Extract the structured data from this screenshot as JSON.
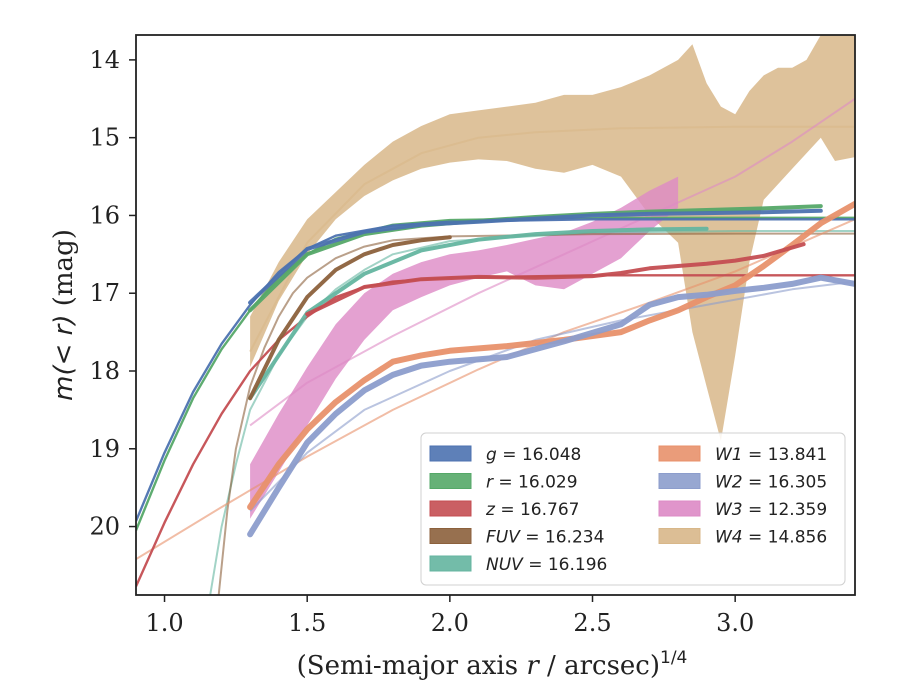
{
  "chart_data": {
    "type": "line",
    "xlabel": "(Semi-major axis r / arcsec)^1/4",
    "xlabel_parts": {
      "pre": "(Semi-major axis ",
      "var": "r",
      "post": " / arcsec)",
      "sup": "1/4"
    },
    "ylabel": "m(<r) (mag)",
    "ylabel_parts": {
      "m": "m",
      "rest": "(< r)",
      "unit": " (mag)"
    },
    "xlim": [
      0.9,
      3.42
    ],
    "ylim": [
      20.88,
      13.68
    ],
    "y_inverted": true,
    "grid": false,
    "legend_position": "lower-right",
    "xticks": [
      1.0,
      1.5,
      2.0,
      2.5,
      3.0
    ],
    "xtick_labels": [
      "1.0",
      "1.5",
      "2.0",
      "2.5",
      "3.0"
    ],
    "yticks": [
      14,
      15,
      16,
      17,
      18,
      19,
      20
    ],
    "ytick_labels": [
      "14",
      "15",
      "16",
      "17",
      "18",
      "19",
      "20"
    ],
    "series": [
      {
        "name": "g",
        "label_value": "16.048",
        "color": "#4c72b0",
        "model_x": [
          0.9,
          1.0,
          1.1,
          1.2,
          1.3,
          1.4,
          1.5,
          1.6,
          1.8,
          2.0,
          2.5,
          3.0,
          3.42
        ],
        "model_y": [
          19.93,
          19.05,
          18.27,
          17.65,
          17.15,
          16.73,
          16.43,
          16.26,
          16.13,
          16.08,
          16.05,
          16.05,
          16.05
        ],
        "data_x": [
          1.3,
          1.5,
          1.7,
          1.9,
          2.1,
          2.3,
          2.5,
          2.7,
          2.9,
          3.1,
          3.3
        ],
        "data_y": [
          17.12,
          16.43,
          16.21,
          16.12,
          16.08,
          16.04,
          16.0,
          15.98,
          15.97,
          15.96,
          15.94
        ]
      },
      {
        "name": "r",
        "label_value": "16.029",
        "color": "#55a868",
        "model_x": [
          0.9,
          1.0,
          1.1,
          1.2,
          1.3,
          1.4,
          1.5,
          1.6,
          1.8,
          2.0,
          2.5,
          3.0,
          3.42
        ],
        "model_y": [
          20.05,
          19.15,
          18.35,
          17.72,
          17.22,
          16.8,
          16.5,
          16.3,
          16.12,
          16.06,
          16.03,
          16.03,
          16.03
        ],
        "data_x": [
          1.3,
          1.5,
          1.7,
          1.9,
          2.1,
          2.3,
          2.5,
          2.7,
          2.9,
          3.1,
          3.3
        ],
        "data_y": [
          17.22,
          16.5,
          16.24,
          16.13,
          16.07,
          16.02,
          15.98,
          15.95,
          15.93,
          15.91,
          15.88
        ]
      },
      {
        "name": "z",
        "label_value": "16.767",
        "color": "#c44e52",
        "model_x": [
          0.9,
          1.0,
          1.1,
          1.2,
          1.3,
          1.4,
          1.5,
          1.6,
          1.7,
          1.8,
          2.0,
          2.5,
          3.0,
          3.42
        ],
        "model_y": [
          20.77,
          19.95,
          19.2,
          18.55,
          18.0,
          17.6,
          17.3,
          17.05,
          16.92,
          16.85,
          16.8,
          16.77,
          16.77,
          16.77
        ],
        "data_x": [
          1.5,
          1.7,
          1.9,
          2.1,
          2.3,
          2.5,
          2.6,
          2.7,
          2.8,
          2.9,
          3.0,
          3.1,
          3.24
        ],
        "data_y": [
          17.27,
          16.92,
          16.82,
          16.79,
          16.8,
          16.78,
          16.74,
          16.68,
          16.65,
          16.62,
          16.58,
          16.52,
          16.37
        ]
      },
      {
        "name": "FUV",
        "label_value": "16.234",
        "color": "#8c613c",
        "model_x": [
          1.19,
          1.22,
          1.25,
          1.3,
          1.35,
          1.4,
          1.45,
          1.5,
          1.6,
          1.7,
          1.8,
          2.0,
          2.5,
          3.0,
          3.42
        ],
        "model_y": [
          20.88,
          19.8,
          19.0,
          18.2,
          17.7,
          17.3,
          17.0,
          16.8,
          16.55,
          16.4,
          16.32,
          16.27,
          16.24,
          16.234,
          16.234
        ],
        "data_x": [
          1.3,
          1.4,
          1.5,
          1.6,
          1.7,
          1.8,
          1.9,
          2.0
        ],
        "data_y": [
          18.35,
          17.6,
          17.05,
          16.7,
          16.5,
          16.38,
          16.32,
          16.28
        ]
      },
      {
        "name": "NUV",
        "label_value": "16.196",
        "color": "#64b5a0",
        "model_x": [
          1.16,
          1.2,
          1.25,
          1.3,
          1.4,
          1.5,
          1.6,
          1.7,
          1.8,
          2.0,
          2.5,
          3.0,
          3.42
        ],
        "model_y": [
          20.88,
          20.0,
          19.2,
          18.5,
          17.8,
          17.3,
          16.95,
          16.7,
          16.5,
          16.33,
          16.22,
          16.2,
          16.2
        ],
        "data_x": [
          1.3,
          1.5,
          1.7,
          1.9,
          2.1,
          2.3,
          2.5,
          2.7,
          2.9
        ],
        "data_y": [
          18.35,
          17.25,
          16.75,
          16.45,
          16.31,
          16.24,
          16.2,
          16.18,
          16.17
        ]
      },
      {
        "name": "W1",
        "label_value": "13.841",
        "color": "#e8916b",
        "model_x": [
          0.9,
          1.2,
          1.5,
          1.8,
          2.1,
          2.4,
          2.7,
          3.0,
          3.42
        ],
        "model_y": [
          20.42,
          19.75,
          19.1,
          18.5,
          17.98,
          17.5,
          17.12,
          16.72,
          16.05
        ],
        "data_x": [
          1.3,
          1.4,
          1.5,
          1.6,
          1.7,
          1.8,
          1.9,
          2.0,
          2.2,
          2.4,
          2.6,
          2.7,
          2.8,
          2.9,
          3.0,
          3.1,
          3.2,
          3.3,
          3.42
        ],
        "data_y": [
          19.75,
          19.2,
          18.75,
          18.4,
          18.12,
          17.88,
          17.8,
          17.74,
          17.68,
          17.6,
          17.5,
          17.35,
          17.22,
          17.05,
          16.9,
          16.65,
          16.38,
          16.1,
          15.85
        ]
      },
      {
        "name": "W2",
        "label_value": "16.305",
        "color": "#8c9dcc",
        "model_x": [
          1.3,
          1.5,
          1.7,
          2.0,
          2.3,
          2.6,
          2.9,
          3.2,
          3.42
        ],
        "model_y": [
          19.8,
          19.05,
          18.5,
          18.0,
          17.6,
          17.35,
          17.15,
          16.95,
          16.85
        ],
        "data_x": [
          1.3,
          1.4,
          1.5,
          1.6,
          1.7,
          1.8,
          1.9,
          2.0,
          2.2,
          2.4,
          2.6,
          2.7,
          2.8,
          2.9,
          3.0,
          3.1,
          3.2,
          3.3,
          3.42
        ],
        "data_y": [
          20.1,
          19.5,
          18.92,
          18.55,
          18.25,
          18.05,
          17.93,
          17.88,
          17.82,
          17.62,
          17.4,
          17.15,
          17.05,
          17.02,
          16.97,
          16.93,
          16.88,
          16.8,
          16.88
        ]
      },
      {
        "name": "W3",
        "label_value": "12.359",
        "color": "#dd8ac5",
        "model_x": [
          1.3,
          1.5,
          1.8,
          2.1,
          2.4,
          2.7,
          3.0,
          3.2,
          3.42
        ],
        "model_y": [
          18.7,
          18.15,
          17.55,
          17.0,
          16.5,
          16.0,
          15.5,
          15.05,
          14.5
        ],
        "data_x": [
          1.3,
          1.4,
          1.5,
          1.6,
          1.7,
          1.8,
          1.9,
          2.0,
          2.1,
          2.2,
          2.3,
          2.4,
          2.5,
          2.6,
          2.7,
          2.8
        ],
        "data_lower": [
          19.9,
          19.3,
          18.7,
          18.1,
          17.6,
          17.22,
          17.05,
          16.9,
          16.8,
          16.72,
          16.9,
          16.95,
          16.75,
          16.55,
          16.2,
          15.9
        ],
        "data_upper": [
          19.2,
          18.55,
          17.95,
          17.4,
          17.0,
          16.75,
          16.6,
          16.5,
          16.45,
          16.38,
          16.3,
          16.22,
          16.08,
          15.9,
          15.68,
          15.5
        ]
      },
      {
        "name": "W4",
        "label_value": "14.856",
        "color": "#d8b789",
        "model_x": [
          1.3,
          1.5,
          1.7,
          1.9,
          2.1,
          2.3,
          2.6,
          3.0,
          3.42
        ],
        "model_y": [
          17.75,
          16.35,
          15.6,
          15.2,
          15.0,
          14.93,
          14.88,
          14.86,
          14.86
        ],
        "data_x": [
          1.3,
          1.4,
          1.5,
          1.6,
          1.7,
          1.8,
          1.9,
          2.0,
          2.1,
          2.2,
          2.3,
          2.4,
          2.5,
          2.6,
          2.7,
          2.8,
          2.85,
          2.9,
          2.95,
          3.0,
          3.05,
          3.1,
          3.15,
          3.2,
          3.25,
          3.3,
          3.35,
          3.42
        ],
        "data_lower": [
          17.95,
          17.1,
          16.5,
          16.05,
          15.75,
          15.55,
          15.4,
          15.32,
          15.28,
          15.3,
          15.4,
          15.45,
          15.35,
          15.5,
          16.0,
          16.35,
          17.5,
          18.2,
          18.9,
          17.8,
          16.6,
          15.8,
          15.6,
          15.4,
          15.2,
          15.0,
          15.3,
          15.25
        ],
        "data_upper": [
          17.3,
          16.6,
          16.05,
          15.7,
          15.35,
          15.05,
          14.85,
          14.7,
          14.65,
          14.6,
          14.55,
          14.45,
          14.45,
          14.35,
          14.2,
          14.0,
          13.8,
          14.3,
          14.6,
          14.7,
          14.4,
          14.2,
          14.1,
          14.1,
          14.0,
          13.68,
          13.68,
          13.68
        ]
      }
    ],
    "legend": {
      "columns": 2,
      "entries": [
        {
          "var": "g",
          "value": "16.048",
          "color": "#4c72b0"
        },
        {
          "var": "r",
          "value": "16.029",
          "color": "#55a868"
        },
        {
          "var": "z",
          "value": "16.767",
          "color": "#c44e52"
        },
        {
          "var": "FUV",
          "value": "16.234",
          "color": "#8c613c"
        },
        {
          "var": "NUV",
          "value": "16.196",
          "color": "#64b5a0"
        },
        {
          "var": "W1",
          "value": "13.841",
          "color": "#e8916b"
        },
        {
          "var": "W2",
          "value": "16.305",
          "color": "#8c9dcc"
        },
        {
          "var": "W3",
          "value": "12.359",
          "color": "#dd8ac5"
        },
        {
          "var": "W4",
          "value": "14.856",
          "color": "#d8b789"
        }
      ]
    }
  }
}
